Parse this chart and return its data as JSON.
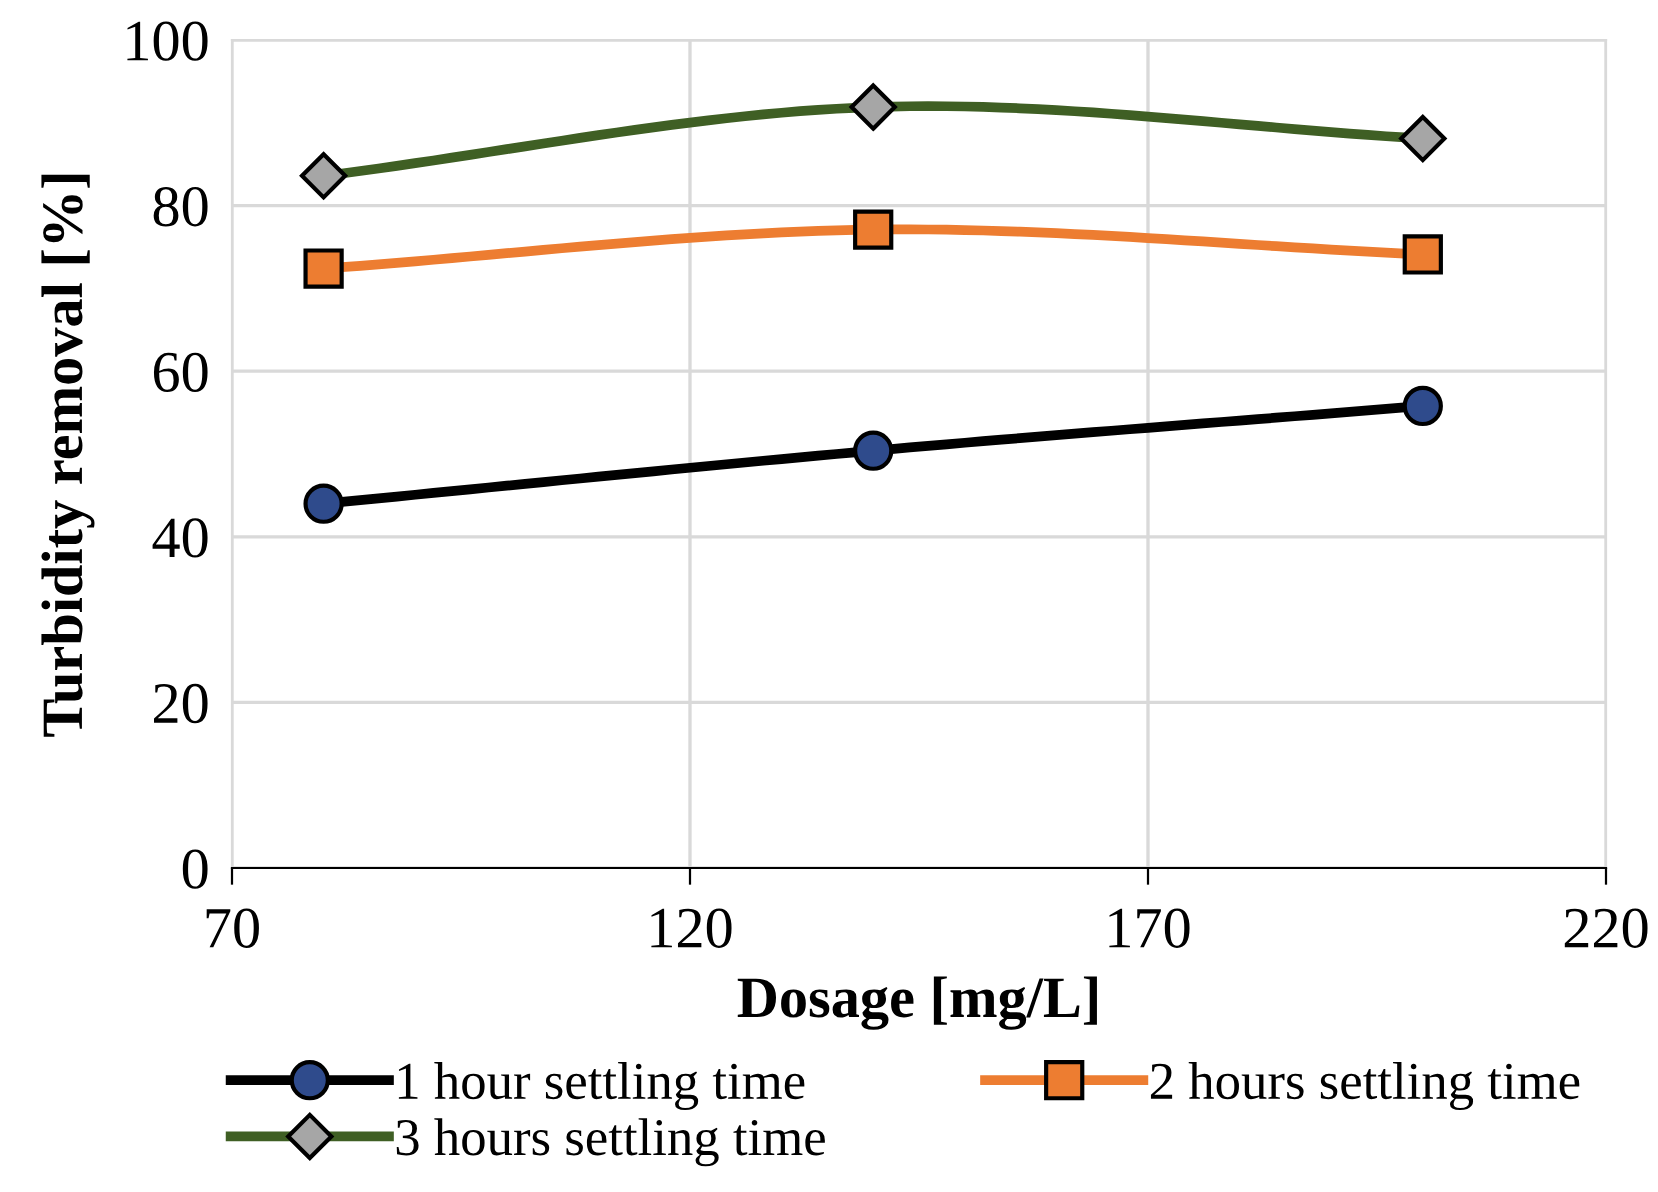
{
  "chart_data": {
    "type": "line",
    "xlabel": "Dosage [mg/L]",
    "ylabel": "Turbidity removal [%]",
    "x": [
      80,
      140,
      200
    ],
    "series": [
      {
        "name": "1 hour settling time",
        "color": "#000000",
        "colors": [
          "#2f4b8c",
          "#2f4b8c",
          "#2f4b8c"
        ],
        "marker": "circle",
        "values": [
          44.0,
          50.4,
          55.8
        ]
      },
      {
        "name": "2 hours settling time",
        "color": "#ed7d31",
        "colors": [
          "#ed7d31",
          "#ed7d31",
          "#ed7d31"
        ],
        "marker": "square",
        "values": [
          72.4,
          77.1,
          74.1
        ]
      },
      {
        "name": "3 hours settling time",
        "color": "#3f5f24",
        "colors": [
          "#a6a6a6",
          "#a6a6a6",
          "#a6a6a6"
        ],
        "marker": "diamond",
        "values": [
          83.6,
          91.9,
          88.1
        ]
      }
    ],
    "xlim": [
      70,
      220
    ],
    "xticks": [
      70,
      120,
      170,
      220
    ],
    "ylim": [
      0,
      100
    ],
    "yticks": [
      0,
      20,
      40,
      60,
      80,
      100
    ],
    "grid": true,
    "legend": "bottom",
    "line_style": "solid"
  }
}
